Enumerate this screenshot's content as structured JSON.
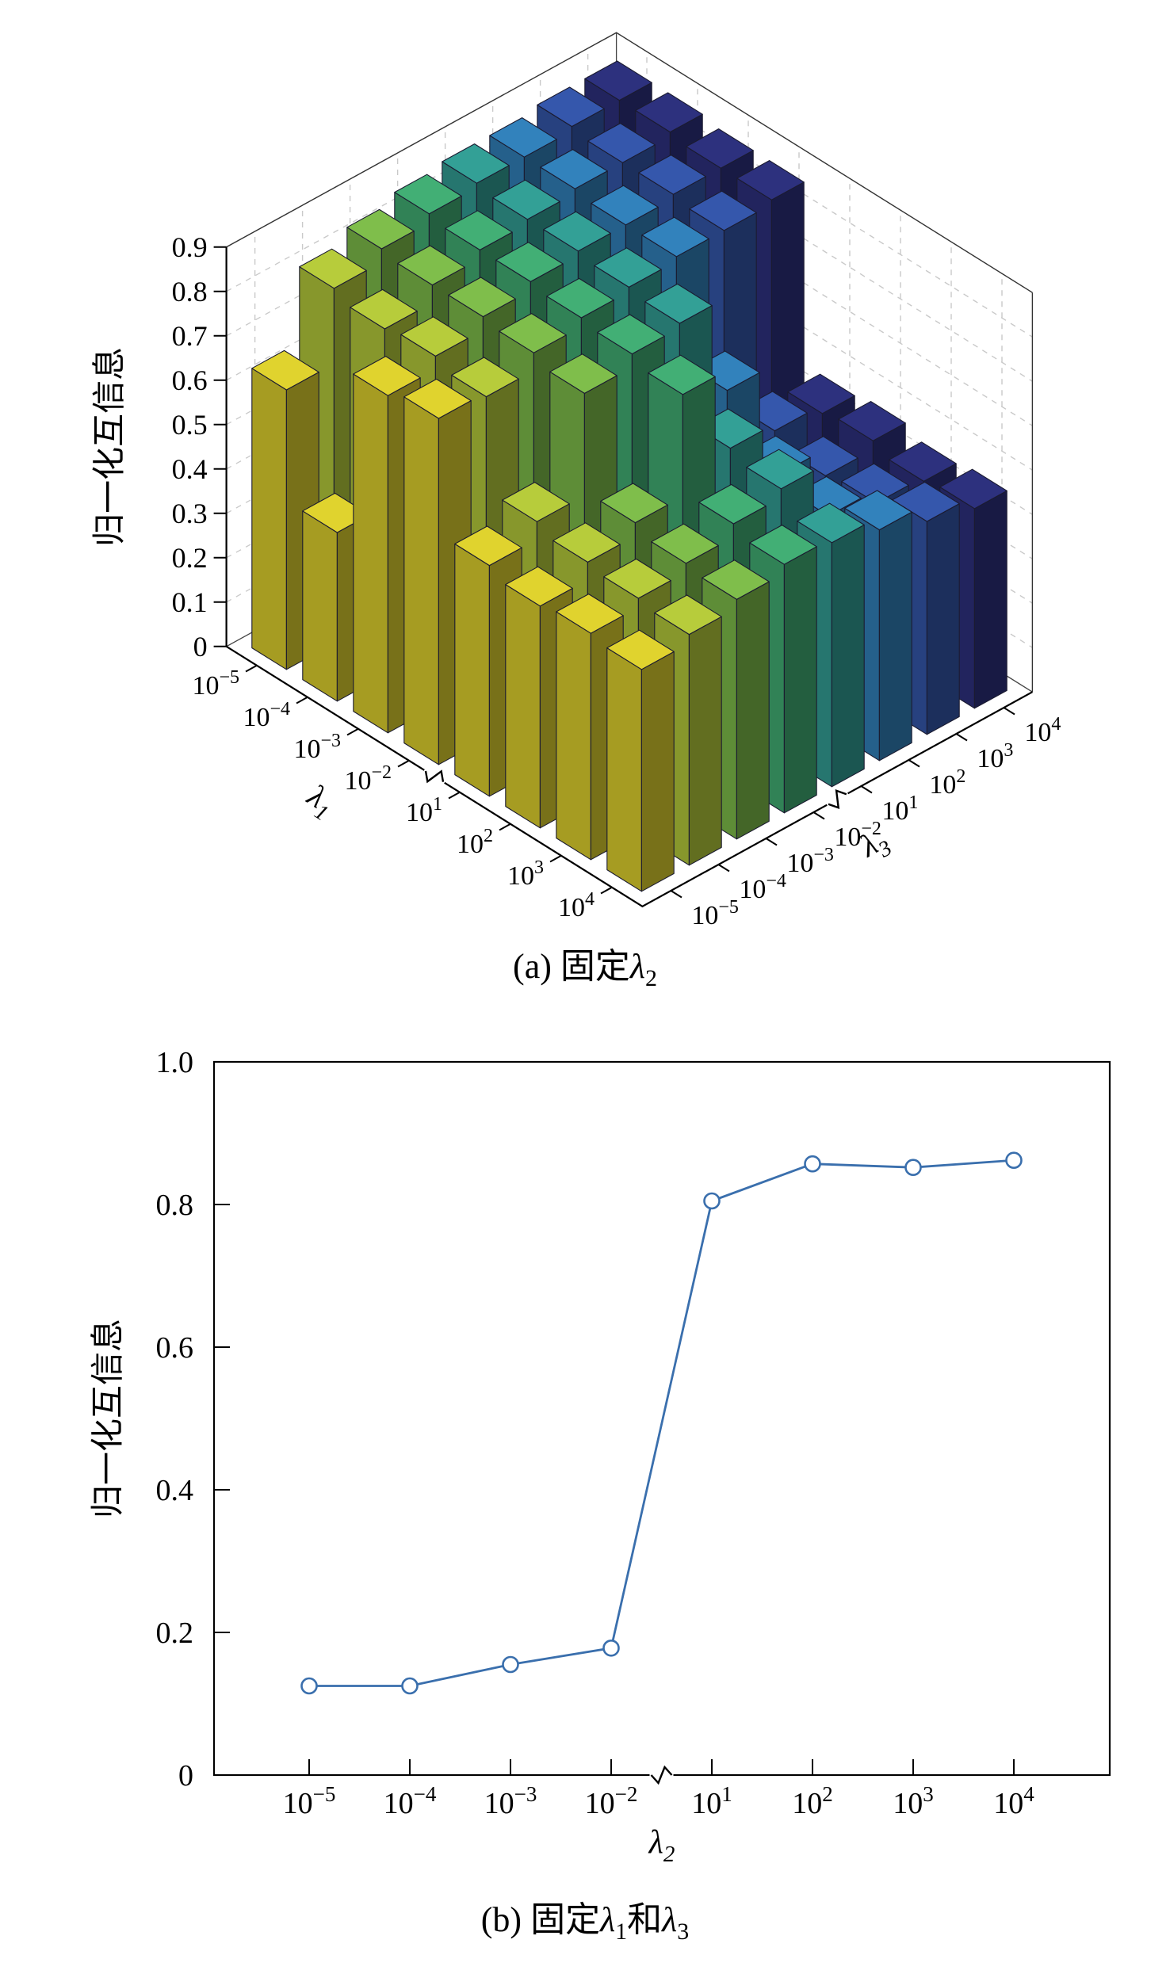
{
  "figure": {
    "background": "#ffffff"
  },
  "captions": {
    "a": {
      "prefix": "(a) 固定",
      "lambda": "λ",
      "sub": "2"
    },
    "b": {
      "p1": "(b) 固定",
      "l1": "λ",
      "s1": "1",
      "mid": "和",
      "l2": "λ",
      "s2": "3"
    }
  },
  "chart_data": [
    {
      "id": "bar3d-nmi",
      "type": "bar",
      "subtype": "bar3d",
      "axes": {
        "z_label": "归一化互信息",
        "x_label_main": "λ",
        "x_label_sub": "1",
        "y_label_main": "λ",
        "y_label_sub": "3",
        "x_tick_exponents": [
          -5,
          -4,
          -3,
          -2,
          1,
          2,
          3,
          4
        ],
        "y_tick_exponents": [
          -5,
          -4,
          -3,
          -2,
          1,
          2,
          3,
          4
        ],
        "z_ticks": [
          0,
          0.1,
          0.2,
          0.3,
          0.4,
          0.5,
          0.6,
          0.7,
          0.8,
          0.9
        ],
        "z_tick_labels": [
          "0",
          "0.1",
          "0.2",
          "0.3",
          "0.4",
          "0.5",
          "0.6",
          "0.7",
          "0.8",
          "0.9"
        ],
        "z_lim": [
          0,
          0.9
        ],
        "axis_break_between_ticks": [
          "10^-2",
          "10^1"
        ]
      },
      "colors_by_lambda3": [
        "#cfc32b",
        "#a9bd37",
        "#76b045",
        "#3da26c",
        "#2f948b",
        "#2e78ae",
        "#31519f",
        "#2a2d75"
      ],
      "values": [
        [
          0.63,
          0.8,
          0.83,
          0.85,
          0.86,
          0.86,
          0.87,
          0.87
        ],
        [
          0.38,
          0.78,
          0.82,
          0.84,
          0.85,
          0.86,
          0.86,
          0.87
        ],
        [
          0.76,
          0.79,
          0.82,
          0.84,
          0.85,
          0.85,
          0.86,
          0.86
        ],
        [
          0.78,
          0.77,
          0.81,
          0.83,
          0.84,
          0.85,
          0.85,
          0.86
        ],
        [
          0.52,
          0.56,
          0.79,
          0.82,
          0.83,
          0.62,
          0.47,
          0.45
        ],
        [
          0.5,
          0.54,
          0.57,
          0.8,
          0.62,
          0.5,
          0.44,
          0.46
        ],
        [
          0.51,
          0.53,
          0.55,
          0.58,
          0.6,
          0.48,
          0.45,
          0.44
        ],
        [
          0.5,
          0.52,
          0.54,
          0.56,
          0.55,
          0.52,
          0.48,
          0.45
        ]
      ]
    },
    {
      "id": "line-nmi",
      "type": "line",
      "x_label_main": "λ",
      "x_label_sub": "2",
      "y_label": "归一化互信息",
      "x_tick_exponents": [
        -5,
        -4,
        -3,
        -2,
        1,
        2,
        3,
        4
      ],
      "y_ticks": [
        0,
        0.2,
        0.4,
        0.6,
        0.8,
        1.0
      ],
      "y_tick_labels": [
        "0",
        "0.2",
        "0.4",
        "0.6",
        "0.8",
        "1.0"
      ],
      "y_lim": [
        0,
        1.0
      ],
      "values": [
        0.125,
        0.125,
        0.155,
        0.178,
        0.805,
        0.857,
        0.852,
        0.862
      ],
      "line_color": "#3a6fad",
      "marker": "open-circle",
      "axis_break_between_ticks": [
        "10^-2",
        "10^1"
      ]
    }
  ]
}
